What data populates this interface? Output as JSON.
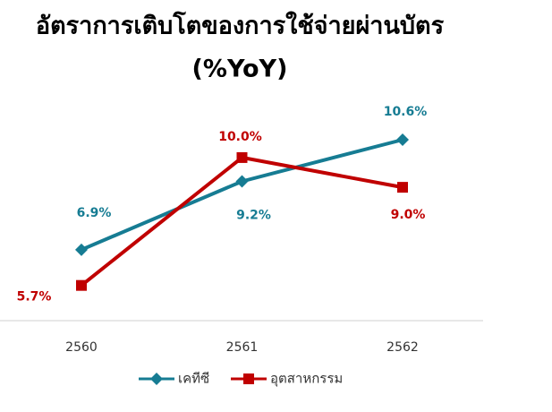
{
  "chart_data": {
    "type": "line",
    "title": "อัตราการเติบโตของการใช้จ่ายผ่านบัตร",
    "subtitle": "(%YoY)",
    "categories": [
      "2560",
      "2561",
      "2562"
    ],
    "series": [
      {
        "name": "เคทีซี",
        "color": "#167c93",
        "marker": "diamond",
        "values": [
          6.9,
          9.2,
          10.6
        ],
        "value_labels": [
          "6.9%",
          "9.2%",
          "10.6%"
        ]
      },
      {
        "name": "อุตสาหกรรม",
        "color": "#c00000",
        "marker": "square",
        "values": [
          5.7,
          10.0,
          9.0
        ],
        "value_labels": [
          "5.7%",
          "10.0%",
          "9.0%"
        ]
      }
    ]
  }
}
